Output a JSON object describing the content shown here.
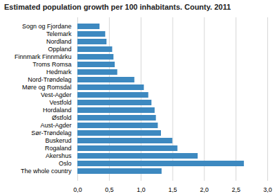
{
  "chart_data": {
    "type": "bar",
    "orientation": "horizontal",
    "title": "Estimated population growth per 100 inhabitants. County. 2011",
    "categories": [
      "Sogn og Fjordane",
      "Telemark",
      "Nordland",
      "Oppland",
      "Finnmark Finnmárku",
      "Troms Romsa",
      "Hedmark",
      "Nord-Trøndelag",
      "Møre og Romsdal",
      "Vest-Agder",
      "Vestfold",
      "Hordaland",
      "Østfold",
      "Aust-Agder",
      "Sør-Trøndelag",
      "Buskerud",
      "Rogaland",
      "Akershus",
      "Oslo",
      "The whole country"
    ],
    "values": [
      0.35,
      0.44,
      0.46,
      0.55,
      0.57,
      0.59,
      0.63,
      0.9,
      1.05,
      1.12,
      1.17,
      1.22,
      1.24,
      1.27,
      1.32,
      1.5,
      1.58,
      1.9,
      2.63,
      1.33
    ],
    "color": "#3d89c0",
    "xlim": [
      0,
      3.0
    ],
    "xticks": [
      {
        "value": 0.0,
        "label": "0,0"
      },
      {
        "value": 0.5,
        "label": "0,5"
      },
      {
        "value": 1.0,
        "label": "1,0"
      },
      {
        "value": 1.5,
        "label": "1,5"
      },
      {
        "value": 2.0,
        "label": "2,0"
      },
      {
        "value": 2.5,
        "label": "2,5"
      },
      {
        "value": 3.0,
        "label": "3,0"
      }
    ],
    "grid": true
  }
}
